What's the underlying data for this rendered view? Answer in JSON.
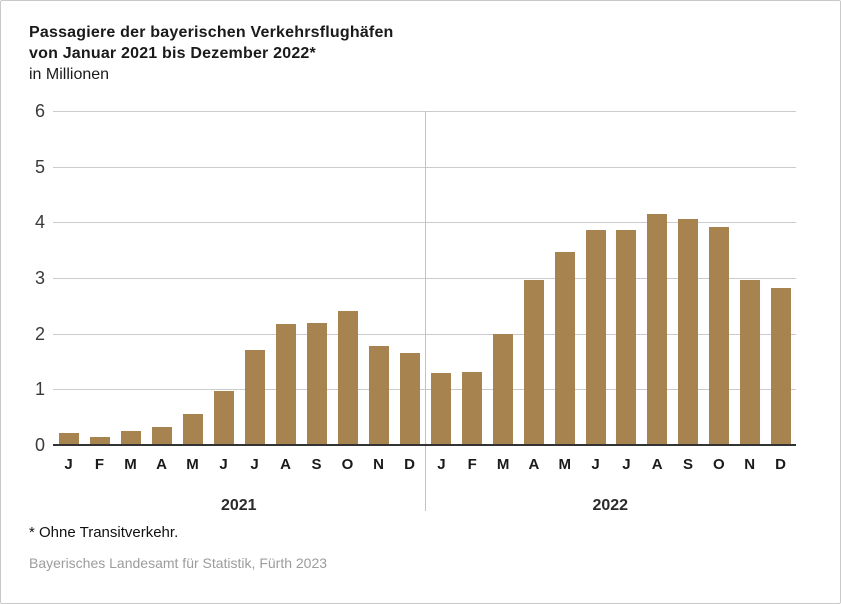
{
  "header": {
    "title_line1": "Passagiere der bayerischen Verkehrsflughäfen",
    "title_line2": "von Januar 2021 bis Dezember 2022*",
    "subtitle": "in Millionen"
  },
  "chart_data": {
    "type": "bar",
    "title": "Passagiere der bayerischen Verkehrsflughäfen von Januar 2021 bis Dezember 2022*",
    "xlabel": "",
    "ylabel": "in Millionen",
    "ylim": [
      0,
      6
    ],
    "yticks": [
      0,
      1,
      2,
      3,
      4,
      5,
      6
    ],
    "grid": true,
    "legend": "none",
    "bar_color": "#A6834F",
    "groups": [
      {
        "year": "2021",
        "months": [
          "J",
          "F",
          "M",
          "A",
          "M",
          "J",
          "J",
          "A",
          "S",
          "O",
          "N",
          "D"
        ],
        "values": [
          0.21,
          0.15,
          0.25,
          0.32,
          0.55,
          0.97,
          1.71,
          2.18,
          2.19,
          2.4,
          1.78,
          1.66
        ]
      },
      {
        "year": "2022",
        "months": [
          "J",
          "F",
          "M",
          "A",
          "M",
          "J",
          "J",
          "A",
          "S",
          "O",
          "N",
          "D"
        ],
        "values": [
          1.3,
          1.32,
          2.0,
          2.97,
          3.47,
          3.87,
          3.87,
          4.15,
          4.06,
          3.92,
          2.96,
          2.82
        ]
      }
    ]
  },
  "footer": {
    "footnote": "* Ohne Transitverkehr.",
    "source": "Bayerisches Landesamt für Statistik, Fürth 2023"
  },
  "colors": {
    "bar": "#A6834F",
    "gridline": "#cbcbcb",
    "axis_line": "#333333",
    "divider": "#c2c2c2",
    "title_text": "#1a1a1a",
    "tick_text": "#3a3a3a",
    "source_text": "#9c9c9c",
    "frame_border": "#c9c9c9"
  }
}
